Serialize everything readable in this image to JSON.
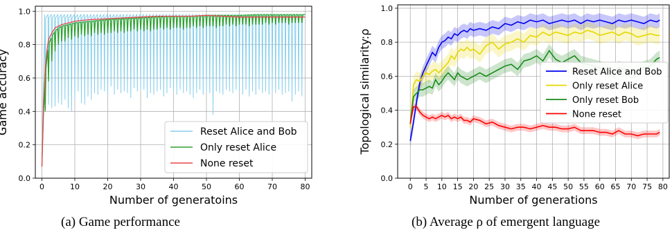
{
  "captions": {
    "a": "(a)  Game performance",
    "b": "(b)  Average ρ of emergent language"
  },
  "chart_data": [
    {
      "type": "line",
      "xlabel": "Number of generatoins",
      "ylabel": "Game accuracy",
      "xlim": [
        -2,
        82
      ],
      "ylim": [
        0,
        1.03
      ],
      "xticks": [
        "0",
        "10",
        "20",
        "30",
        "40",
        "50",
        "60",
        "70",
        "80"
      ],
      "yticks": [
        "0.0",
        "0.2",
        "0.4",
        "0.6",
        "0.8",
        "1.0"
      ],
      "grid": true,
      "legend_position": "lower-right",
      "series": [
        {
          "name": "Reset Alice and Bob",
          "color": "#87ceeb",
          "peak_accuracy": 0.98,
          "dip_generations": [
            1,
            2,
            3,
            4,
            5,
            6,
            7,
            8,
            9,
            10,
            11,
            12,
            13,
            14,
            15,
            16,
            17,
            18,
            19,
            20,
            21,
            22,
            23,
            24,
            25,
            26,
            27,
            28,
            29,
            30,
            31,
            32,
            33,
            34,
            35,
            36,
            37,
            38,
            39,
            40,
            41,
            42,
            43,
            44,
            45,
            46,
            47,
            48,
            49,
            50,
            51,
            52,
            53,
            54,
            55,
            56,
            57,
            58,
            59,
            60,
            61,
            62,
            63,
            64,
            65,
            66,
            67,
            68,
            69,
            70,
            71,
            72,
            73,
            74,
            75,
            76,
            77,
            78,
            79
          ],
          "dip_accuracy": [
            0.45,
            0.44,
            0.42,
            0.43,
            0.45,
            0.44,
            0.47,
            0.42,
            0.4,
            0.47,
            0.52,
            0.45,
            0.44,
            0.49,
            0.47,
            0.51,
            0.5,
            0.53,
            0.52,
            0.5,
            0.55,
            0.5,
            0.53,
            0.51,
            0.52,
            0.51,
            0.48,
            0.54,
            0.52,
            0.53,
            0.53,
            0.48,
            0.51,
            0.5,
            0.52,
            0.53,
            0.49,
            0.51,
            0.54,
            0.52,
            0.5,
            0.53,
            0.51,
            0.52,
            0.5,
            0.48,
            0.51,
            0.53,
            0.5,
            0.52,
            0.51,
            0.38,
            0.52,
            0.51,
            0.5,
            0.53,
            0.52,
            0.51,
            0.53,
            0.52,
            0.5,
            0.53,
            0.49,
            0.52,
            0.5,
            0.53,
            0.51,
            0.52,
            0.5,
            0.52,
            0.51,
            0.53,
            0.5,
            0.51,
            0.52,
            0.46,
            0.5,
            0.52,
            0.49
          ]
        },
        {
          "name": "Only reset Alice",
          "color": "#2ca02c",
          "x": [
            0,
            0.5,
            1,
            1.5,
            2,
            3,
            4,
            5,
            6,
            8,
            10,
            12,
            15,
            20,
            25,
            30,
            35,
            40,
            45,
            50,
            55,
            60,
            65,
            70,
            75,
            80
          ],
          "y": [
            0.07,
            0.4,
            0.6,
            0.72,
            0.8,
            0.85,
            0.88,
            0.9,
            0.91,
            0.92,
            0.93,
            0.935,
            0.94,
            0.95,
            0.955,
            0.96,
            0.965,
            0.97,
            0.97,
            0.975,
            0.975,
            0.975,
            0.98,
            0.98,
            0.98,
            0.98
          ],
          "dip_generations": [
            1,
            2,
            3,
            4,
            5,
            6,
            7,
            8,
            9,
            10,
            11,
            12,
            13,
            14,
            15,
            16,
            17,
            18,
            19,
            20,
            21,
            22,
            23,
            24,
            25,
            26,
            27,
            28,
            29,
            30,
            31,
            32,
            33,
            34,
            35,
            36,
            37,
            38,
            39,
            40,
            41,
            42,
            43,
            44,
            45,
            46,
            47,
            48,
            49,
            50,
            51,
            52,
            53,
            54,
            55,
            56,
            57,
            58,
            59,
            60,
            61,
            62,
            63,
            64,
            65,
            66,
            67,
            68,
            69,
            70,
            71,
            72,
            73,
            74,
            75,
            76,
            77,
            78,
            79
          ],
          "dip_accuracy": [
            0.4,
            0.58,
            0.7,
            0.76,
            0.8,
            0.82,
            0.82,
            0.84,
            0.83,
            0.85,
            0.84,
            0.86,
            0.85,
            0.86,
            0.85,
            0.87,
            0.86,
            0.87,
            0.86,
            0.87,
            0.87,
            0.88,
            0.87,
            0.88,
            0.87,
            0.88,
            0.88,
            0.89,
            0.88,
            0.89,
            0.88,
            0.89,
            0.88,
            0.89,
            0.89,
            0.9,
            0.89,
            0.9,
            0.89,
            0.9,
            0.9,
            0.9,
            0.89,
            0.9,
            0.9,
            0.91,
            0.9,
            0.91,
            0.9,
            0.91,
            0.91,
            0.91,
            0.9,
            0.91,
            0.91,
            0.92,
            0.91,
            0.92,
            0.91,
            0.92,
            0.92,
            0.92,
            0.91,
            0.92,
            0.92,
            0.92,
            0.92,
            0.93,
            0.92,
            0.93,
            0.92,
            0.93,
            0.93,
            0.93,
            0.92,
            0.93,
            0.93,
            0.93,
            0.93
          ]
        },
        {
          "name": "None reset",
          "color": "#e8474b",
          "x": [
            0,
            0.5,
            1,
            1.5,
            2,
            3,
            4,
            5,
            6,
            8,
            10,
            12,
            15,
            20,
            25,
            30,
            35,
            40,
            45,
            50,
            55,
            60,
            65,
            70,
            75,
            80
          ],
          "y": [
            0.07,
            0.45,
            0.66,
            0.76,
            0.83,
            0.87,
            0.9,
            0.91,
            0.92,
            0.93,
            0.94,
            0.945,
            0.95,
            0.955,
            0.96,
            0.965,
            0.97,
            0.97,
            0.97,
            0.975,
            0.97,
            0.965,
            0.965,
            0.965,
            0.965,
            0.965
          ]
        }
      ]
    },
    {
      "type": "line",
      "xlabel": "Number of generations",
      "ylabel": "Topological similarity:ρ",
      "xlim": [
        -4,
        82
      ],
      "ylim": [
        0,
        1.02
      ],
      "xticks": [
        "0",
        "5",
        "10",
        "15",
        "20",
        "25",
        "30",
        "35",
        "40",
        "45",
        "50",
        "55",
        "60",
        "65",
        "70",
        "75",
        "80"
      ],
      "yticks": [
        "0.0",
        "0.2",
        "0.4",
        "0.6",
        "0.8",
        "1.0"
      ],
      "grid": true,
      "legend_position": "center-right",
      "series": [
        {
          "name": "Reset Alice and Bob",
          "color": "#0000ee",
          "x": [
            0,
            1,
            2,
            3,
            4,
            5,
            6,
            7,
            8,
            9,
            10,
            11,
            12,
            13,
            14,
            15,
            16,
            17,
            18,
            19,
            20,
            22,
            24,
            26,
            28,
            30,
            32,
            34,
            36,
            38,
            40,
            42,
            44,
            46,
            48,
            50,
            52,
            54,
            56,
            58,
            60,
            62,
            64,
            66,
            68,
            70,
            72,
            74,
            76,
            78,
            79
          ],
          "y": [
            0.22,
            0.33,
            0.45,
            0.56,
            0.62,
            0.66,
            0.7,
            0.74,
            0.72,
            0.77,
            0.8,
            0.81,
            0.83,
            0.82,
            0.85,
            0.84,
            0.86,
            0.87,
            0.86,
            0.88,
            0.87,
            0.88,
            0.87,
            0.89,
            0.88,
            0.91,
            0.9,
            0.92,
            0.91,
            0.93,
            0.92,
            0.93,
            0.91,
            0.92,
            0.93,
            0.92,
            0.93,
            0.91,
            0.93,
            0.92,
            0.93,
            0.92,
            0.91,
            0.93,
            0.92,
            0.93,
            0.92,
            0.91,
            0.93,
            0.92,
            0.93
          ],
          "band": 0.04
        },
        {
          "name": "Only reset Alice",
          "color": "#e6d800",
          "x": [
            0,
            1,
            2,
            3,
            4,
            5,
            6,
            7,
            8,
            9,
            10,
            11,
            12,
            13,
            14,
            15,
            16,
            17,
            18,
            19,
            20,
            22,
            24,
            26,
            28,
            30,
            32,
            34,
            36,
            38,
            40,
            42,
            44,
            46,
            48,
            50,
            52,
            54,
            56,
            58,
            60,
            62,
            64,
            66,
            68,
            70,
            72,
            74,
            76,
            78,
            79
          ],
          "y": [
            0.3,
            0.55,
            0.58,
            0.57,
            0.6,
            0.62,
            0.61,
            0.63,
            0.64,
            0.62,
            0.64,
            0.66,
            0.68,
            0.72,
            0.7,
            0.74,
            0.76,
            0.75,
            0.77,
            0.75,
            0.76,
            0.73,
            0.78,
            0.8,
            0.76,
            0.79,
            0.8,
            0.82,
            0.8,
            0.84,
            0.83,
            0.86,
            0.84,
            0.86,
            0.85,
            0.84,
            0.86,
            0.85,
            0.87,
            0.86,
            0.84,
            0.85,
            0.86,
            0.84,
            0.86,
            0.85,
            0.83,
            0.84,
            0.85,
            0.84,
            0.84
          ],
          "band": 0.05
        },
        {
          "name": "Only reset Bob",
          "color": "#1a8a1a",
          "x": [
            0,
            1,
            2,
            3,
            4,
            5,
            6,
            7,
            8,
            9,
            10,
            11,
            12,
            13,
            14,
            15,
            16,
            17,
            18,
            19,
            20,
            22,
            24,
            26,
            28,
            30,
            32,
            34,
            36,
            38,
            40,
            42,
            44,
            46,
            48,
            50,
            52,
            54,
            56,
            58,
            60,
            62,
            64,
            66,
            68,
            70,
            72,
            74,
            76,
            78,
            79
          ],
          "y": [
            0.32,
            0.48,
            0.5,
            0.52,
            0.52,
            0.53,
            0.54,
            0.53,
            0.58,
            0.55,
            0.57,
            0.6,
            0.62,
            0.6,
            0.58,
            0.62,
            0.6,
            0.59,
            0.58,
            0.59,
            0.6,
            0.62,
            0.6,
            0.62,
            0.64,
            0.66,
            0.67,
            0.64,
            0.69,
            0.7,
            0.72,
            0.69,
            0.75,
            0.7,
            0.68,
            0.7,
            0.72,
            0.68,
            0.67,
            0.66,
            0.65,
            0.64,
            0.62,
            0.65,
            0.64,
            0.62,
            0.63,
            0.65,
            0.66,
            0.7,
            0.71
          ],
          "band": 0.04
        },
        {
          "name": "None reset",
          "color": "#ff0000",
          "x": [
            0,
            1,
            2,
            3,
            4,
            5,
            6,
            7,
            8,
            9,
            10,
            11,
            12,
            13,
            14,
            15,
            16,
            17,
            18,
            19,
            20,
            22,
            24,
            26,
            28,
            30,
            32,
            34,
            36,
            38,
            40,
            42,
            44,
            46,
            48,
            50,
            52,
            54,
            56,
            58,
            60,
            62,
            64,
            66,
            68,
            70,
            72,
            74,
            76,
            78,
            79
          ],
          "y": [
            0.32,
            0.42,
            0.42,
            0.39,
            0.37,
            0.36,
            0.35,
            0.36,
            0.35,
            0.36,
            0.37,
            0.36,
            0.37,
            0.35,
            0.36,
            0.35,
            0.36,
            0.34,
            0.34,
            0.33,
            0.35,
            0.34,
            0.32,
            0.33,
            0.31,
            0.3,
            0.29,
            0.3,
            0.3,
            0.29,
            0.3,
            0.31,
            0.3,
            0.3,
            0.29,
            0.29,
            0.3,
            0.28,
            0.28,
            0.28,
            0.27,
            0.27,
            0.26,
            0.28,
            0.26,
            0.26,
            0.25,
            0.26,
            0.26,
            0.26,
            0.27
          ],
          "band": 0.02
        }
      ]
    }
  ]
}
